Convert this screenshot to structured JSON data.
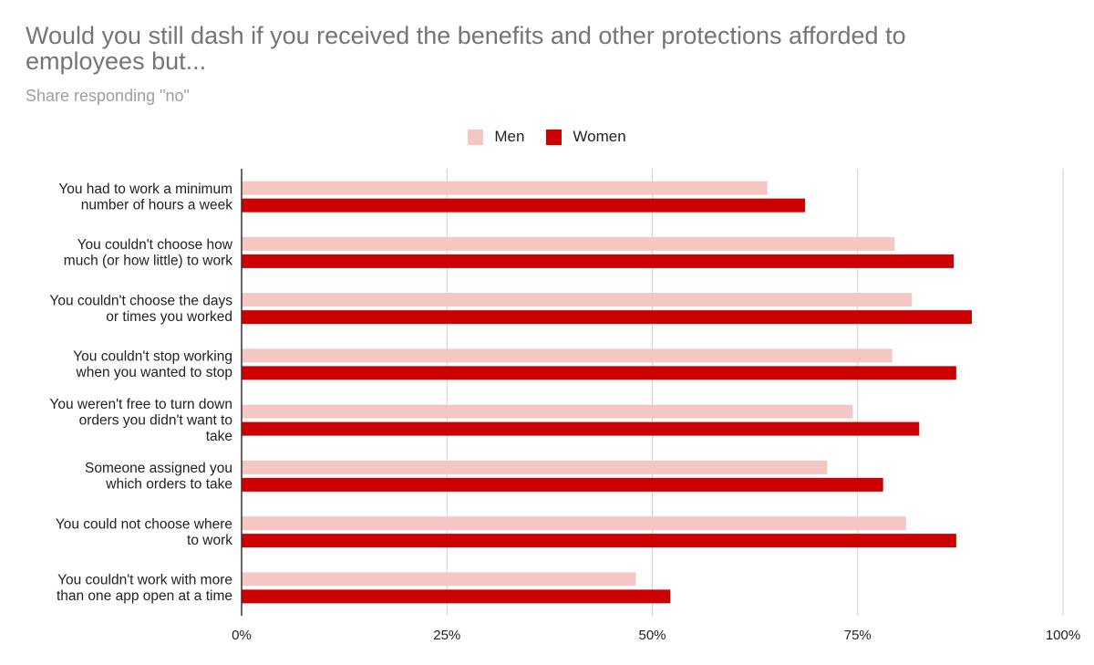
{
  "title": "Would you still dash if you received the benefits and other protections afforded to employees but...",
  "subtitle": "Share responding \"no\"",
  "colors": {
    "men": "#f4c7c3",
    "women": "#cc0000"
  },
  "legend": [
    {
      "label": "Men",
      "color_key": "men"
    },
    {
      "label": "Women",
      "color_key": "women"
    }
  ],
  "chart_data": {
    "type": "bar",
    "orientation": "horizontal",
    "categories": [
      [
        "You had to work a minimum",
        "number of hours a week"
      ],
      [
        "You couldn't choose how",
        "much (or how little) to work"
      ],
      [
        "You couldn't choose the days",
        "or times you worked"
      ],
      [
        "You couldn't stop working",
        "when you wanted to stop"
      ],
      [
        "You weren't free to turn down",
        "orders you didn't want to",
        "take"
      ],
      [
        "Someone assigned you",
        "which orders to take"
      ],
      [
        "You could not choose where",
        "to work"
      ],
      [
        "You couldn't work with more",
        "than one app open at a time"
      ]
    ],
    "series": [
      {
        "name": "Men",
        "values": [
          0.64,
          0.795,
          0.816,
          0.792,
          0.744,
          0.713,
          0.809,
          0.48
        ]
      },
      {
        "name": "Women",
        "values": [
          0.686,
          0.867,
          0.889,
          0.87,
          0.825,
          0.781,
          0.87,
          0.522
        ]
      }
    ],
    "xlim": [
      0,
      1
    ],
    "ticks": [
      "0%",
      "25%",
      "50%",
      "75%",
      "100%"
    ],
    "grid": true,
    "legend_position": "top-center"
  }
}
